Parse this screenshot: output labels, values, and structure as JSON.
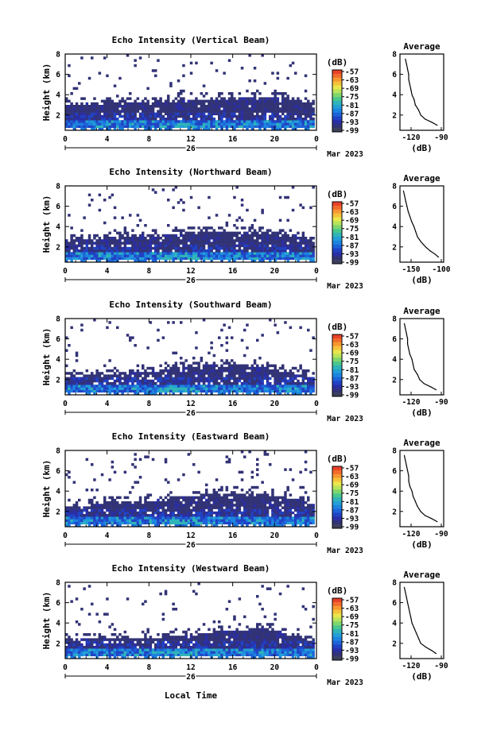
{
  "figure": {
    "x_label": "Local Time",
    "month_label": "Mar 2023",
    "day_label": "26",
    "unit_label": "(dB)",
    "y_label": "Height (km)",
    "avg_title": "Average",
    "avg_xlabel": "(dB)"
  },
  "colorscale": {
    "ticks": [
      "-57",
      "-63",
      "-69",
      "-75",
      "-81",
      "-87",
      "-93",
      "-99"
    ],
    "colors": [
      "#e8412a",
      "#f36b2c",
      "#f79731",
      "#f6c13a",
      "#e9e74c",
      "#b9e35a",
      "#7ed66d",
      "#49c78d",
      "#2fb4b7",
      "#23a0d6",
      "#1c84e0",
      "#1c63d8",
      "#2142c4",
      "#2a2ea5",
      "#323376",
      "#3b3f5a"
    ]
  },
  "chart_data": [
    {
      "type": "heatmap",
      "title": "Echo Intensity (Vertical Beam)",
      "beam": "vertical",
      "x_ticks": [
        "0",
        "4",
        "8",
        "12",
        "16",
        "20",
        "0"
      ],
      "y_ticks": [
        "2",
        "4",
        "6",
        "8"
      ],
      "x_range_hours": [
        0,
        24
      ],
      "y_range_km": [
        0.5,
        8.0
      ],
      "color_range_db": [
        -99,
        -57
      ],
      "layer_top_km": [
        3.0,
        3.2,
        3.3,
        3.5,
        3.7,
        3.8,
        3.6,
        2.8
      ],
      "layer_top_times_h": [
        0,
        4,
        8,
        12,
        16,
        20,
        22,
        24
      ],
      "average_profile": {
        "x_ticks": [
          "-120",
          "-90"
        ],
        "y_ticks": [
          "2",
          "4",
          "6",
          "8"
        ],
        "x_range": [
          -125,
          -85
        ],
        "y_range": [
          0.5,
          8.0
        ],
        "height_km": [
          1.0,
          1.3,
          1.6,
          2.0,
          2.5,
          3.0,
          3.5,
          4.0,
          4.5,
          5.0,
          5.5,
          6.0,
          6.5,
          7.0,
          7.5
        ],
        "value_db": [
          -91,
          -96,
          -102,
          -106,
          -108,
          -111,
          -112,
          -114,
          -115,
          -116,
          -117,
          -117,
          -118,
          -119,
          -120
        ]
      }
    },
    {
      "type": "heatmap",
      "title": "Echo Intensity (Northward Beam)",
      "beam": "northward",
      "x_ticks": [
        "0",
        "4",
        "8",
        "12",
        "16",
        "20",
        "0"
      ],
      "y_ticks": [
        "2",
        "4",
        "6",
        "8"
      ],
      "x_range_hours": [
        0,
        24
      ],
      "y_range_km": [
        0.5,
        8.0
      ],
      "color_range_db": [
        -99,
        -57
      ],
      "layer_top_km": [
        2.6,
        2.9,
        3.1,
        3.3,
        3.5,
        3.4,
        3.2,
        2.5
      ],
      "layer_top_times_h": [
        0,
        4,
        8,
        12,
        16,
        20,
        22,
        24
      ],
      "average_profile": {
        "x_ticks": [
          "-150",
          "-100"
        ],
        "y_ticks": [
          "2",
          "4",
          "6",
          "8"
        ],
        "x_range": [
          -160,
          -85
        ],
        "y_range": [
          0.5,
          8.0
        ],
        "height_km": [
          1.0,
          1.3,
          1.6,
          2.0,
          2.5,
          3.0,
          3.5,
          4.0,
          4.5,
          5.0,
          5.5,
          6.0,
          6.5,
          7.0,
          7.5
        ],
        "value_db": [
          -94,
          -100,
          -108,
          -116,
          -124,
          -130,
          -133,
          -136,
          -140,
          -143,
          -146,
          -148,
          -150,
          -152,
          -154
        ]
      }
    },
    {
      "type": "heatmap",
      "title": "Echo Intensity (Southward Beam)",
      "beam": "southward",
      "x_ticks": [
        "0",
        "4",
        "8",
        "12",
        "16",
        "20",
        "0"
      ],
      "y_ticks": [
        "2",
        "4",
        "6",
        "8"
      ],
      "x_range_hours": [
        0,
        24
      ],
      "y_range_km": [
        0.5,
        8.0
      ],
      "color_range_db": [
        -99,
        -57
      ],
      "layer_top_km": [
        2.2,
        2.5,
        2.8,
        3.3,
        3.6,
        3.0,
        2.6,
        2.2
      ],
      "layer_top_times_h": [
        0,
        4,
        8,
        12,
        16,
        20,
        22,
        24
      ],
      "average_profile": {
        "x_ticks": [
          "-120",
          "-90"
        ],
        "y_ticks": [
          "2",
          "4",
          "6",
          "8"
        ],
        "x_range": [
          -125,
          -85
        ],
        "y_range": [
          0.5,
          8.0
        ],
        "height_km": [
          1.0,
          1.3,
          1.6,
          2.0,
          2.5,
          3.0,
          3.5,
          4.0,
          4.5,
          5.0,
          5.5,
          6.0,
          6.5,
          7.0,
          7.5
        ],
        "value_db": [
          -92,
          -97,
          -103,
          -107,
          -109,
          -112,
          -113,
          -114,
          -116,
          -117,
          -118,
          -118,
          -119,
          -120,
          -121
        ]
      }
    },
    {
      "type": "heatmap",
      "title": "Echo Intensity (Eastward Beam)",
      "beam": "eastward",
      "x_ticks": [
        "0",
        "4",
        "8",
        "12",
        "16",
        "20",
        "0"
      ],
      "y_ticks": [
        "2",
        "4",
        "6",
        "8"
      ],
      "x_range_hours": [
        0,
        24
      ],
      "y_range_km": [
        0.5,
        8.0
      ],
      "color_range_db": [
        -99,
        -57
      ],
      "layer_top_km": [
        2.5,
        2.8,
        3.1,
        3.5,
        3.8,
        3.6,
        3.2,
        2.6
      ],
      "layer_top_times_h": [
        0,
        4,
        8,
        12,
        16,
        20,
        22,
        24
      ],
      "average_profile": {
        "x_ticks": [
          "-120",
          "-90"
        ],
        "y_ticks": [
          "2",
          "4",
          "6",
          "8"
        ],
        "x_range": [
          -125,
          -85
        ],
        "y_range": [
          0.5,
          8.0
        ],
        "height_km": [
          1.0,
          1.3,
          1.6,
          2.0,
          2.5,
          3.0,
          3.5,
          4.0,
          4.5,
          5.0,
          5.5,
          6.0,
          6.5,
          7.0,
          7.5
        ],
        "value_db": [
          -91,
          -96,
          -102,
          -106,
          -109,
          -111,
          -113,
          -114,
          -116,
          -117,
          -117,
          -118,
          -119,
          -120,
          -121
        ]
      }
    },
    {
      "type": "heatmap",
      "title": "Echo Intensity (Westward Beam)",
      "beam": "westward",
      "x_ticks": [
        "0",
        "4",
        "8",
        "12",
        "16",
        "20",
        "0"
      ],
      "y_ticks": [
        "2",
        "4",
        "6",
        "8"
      ],
      "x_range_hours": [
        0,
        24
      ],
      "y_range_km": [
        0.5,
        8.0
      ],
      "color_range_db": [
        -99,
        -57
      ],
      "layer_top_km": [
        2.3,
        2.5,
        2.6,
        2.8,
        3.3,
        3.4,
        2.6,
        2.1
      ],
      "layer_top_times_h": [
        0,
        4,
        8,
        12,
        16,
        20,
        22,
        24
      ],
      "average_profile": {
        "x_ticks": [
          "-120",
          "-90"
        ],
        "y_ticks": [
          "2",
          "4",
          "6",
          "8"
        ],
        "x_range": [
          -125,
          -85
        ],
        "y_range": [
          0.5,
          8.0
        ],
        "height_km": [
          1.0,
          1.3,
          1.6,
          2.0,
          2.5,
          3.0,
          3.5,
          4.0,
          4.5,
          5.0,
          5.5,
          6.0,
          6.5,
          7.0,
          7.5
        ],
        "value_db": [
          -92,
          -96,
          -101,
          -106,
          -108,
          -110,
          -112,
          -114,
          -115,
          -116,
          -117,
          -118,
          -119,
          -120,
          -121
        ]
      }
    }
  ]
}
